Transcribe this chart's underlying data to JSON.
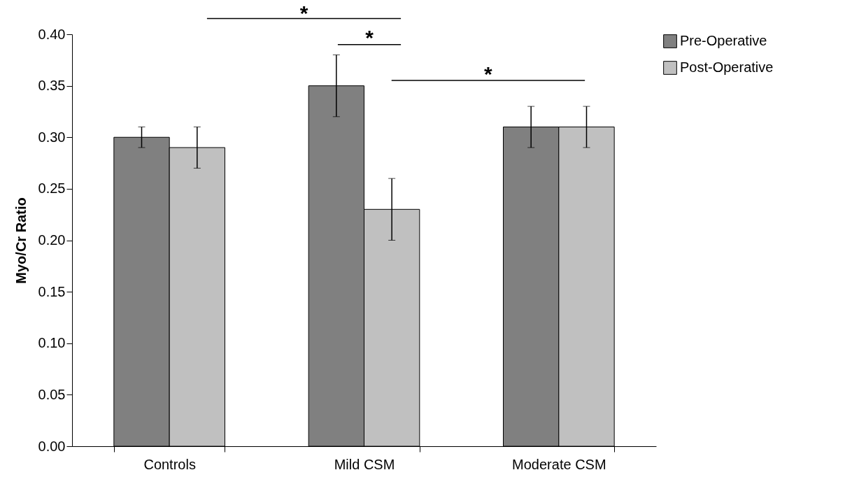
{
  "chart_data": {
    "type": "bar",
    "ylabel": "Myo/Cr Ratio",
    "categories": [
      "Controls",
      "Mild CSM",
      "Moderate CSM"
    ],
    "series": [
      {
        "name": "Pre-Operative",
        "color": "#808080",
        "values": [
          0.3,
          0.35,
          0.31
        ],
        "errors": [
          0.01,
          0.03,
          0.02
        ]
      },
      {
        "name": "Post-Operative",
        "color": "#c0c0c0",
        "values": [
          0.29,
          0.23,
          0.31
        ],
        "errors": [
          0.02,
          0.03,
          0.02
        ]
      }
    ],
    "ylim": [
      0,
      0.4
    ],
    "yticks": [
      {
        "value": 0,
        "label": "0.00"
      },
      0.05,
      {
        "value": 0.1,
        "label": "0.10"
      },
      0.15,
      {
        "value": 0.2,
        "label": "0.20"
      },
      0.25,
      {
        "value": 0.3,
        "label": "0.30"
      },
      0.35,
      {
        "value": 0.4,
        "label": "0.40"
      }
    ],
    "grid": false,
    "legend": "right",
    "annotations": [
      "*",
      "*",
      "*"
    ]
  }
}
